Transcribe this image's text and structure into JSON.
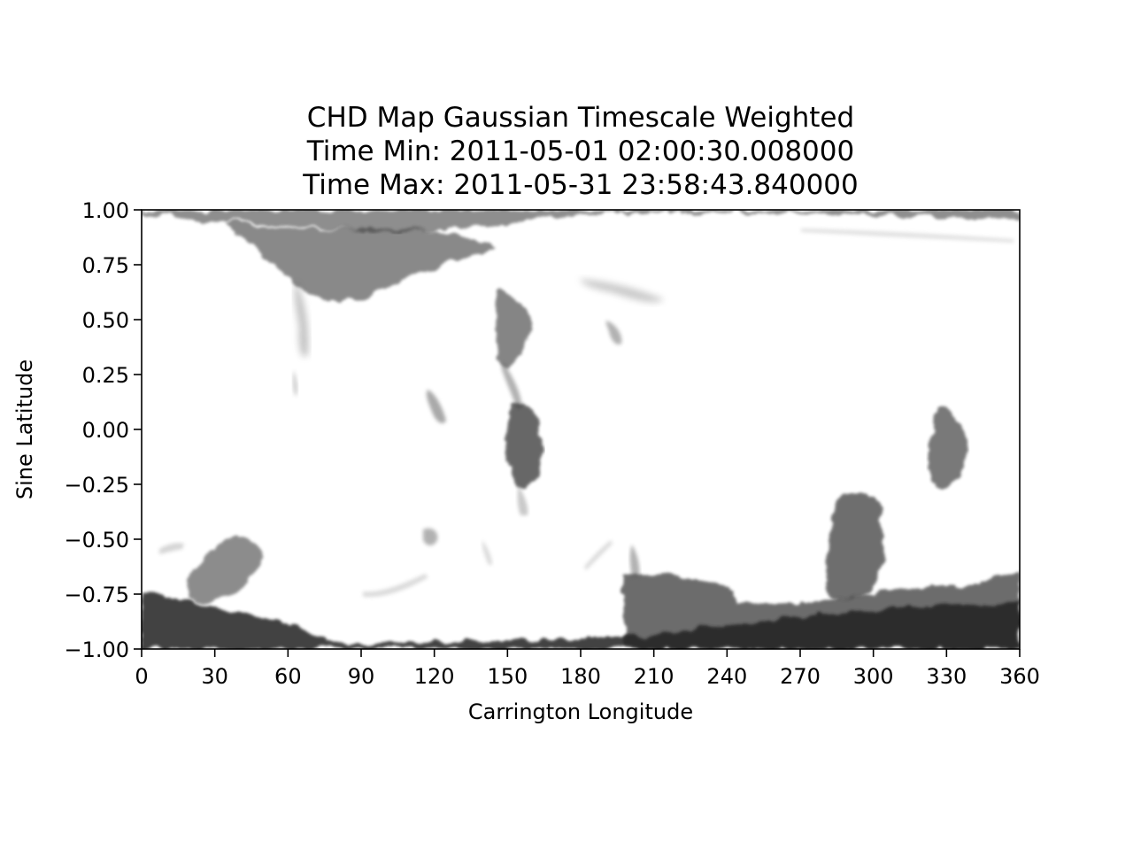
{
  "chart_data": {
    "type": "heatmap",
    "title_lines": [
      "CHD Map Gaussian Timescale Weighted",
      "Time Min: 2011-05-01 02:00:30.008000",
      "Time Max: 2011-05-31 23:58:43.840000"
    ],
    "xlabel": "Carrington Longitude",
    "ylabel": "Sine Latitude",
    "xlim": [
      0,
      360
    ],
    "ylim": [
      -1.0,
      1.0
    ],
    "xticks": [
      0,
      30,
      60,
      90,
      120,
      150,
      180,
      210,
      240,
      270,
      300,
      330,
      360
    ],
    "yticks": [
      -1.0,
      -0.75,
      -0.5,
      -0.25,
      0.0,
      0.25,
      0.5,
      0.75,
      1.0
    ],
    "xtick_labels": [
      "0",
      "30",
      "60",
      "90",
      "120",
      "150",
      "180",
      "210",
      "240",
      "270",
      "300",
      "330",
      "360"
    ],
    "ytick_labels": [
      "−1.00",
      "−0.75",
      "−0.50",
      "−0.25",
      "0.00",
      "0.25",
      "0.50",
      "0.75",
      "1.00"
    ],
    "colormap": "gray_r",
    "grid": false,
    "regions": [
      {
        "name": "north polar cap",
        "lon": [
          0,
          360
        ],
        "sinlat": [
          0.96,
          1.0
        ],
        "intensity": 0.55
      },
      {
        "name": "north high-lat extension",
        "lon": [
          45,
          95
        ],
        "sinlat": [
          0.62,
          0.88
        ],
        "intensity": 0.6
      },
      {
        "name": "north tendril",
        "lon": [
          70,
          78
        ],
        "sinlat": [
          0.3,
          0.6
        ],
        "intensity": 0.25
      },
      {
        "name": "mid-lat patch",
        "lon": [
          148,
          165
        ],
        "sinlat": [
          0.3,
          0.65
        ],
        "intensity": 0.6
      },
      {
        "name": "equatorial hole",
        "lon": [
          150,
          168
        ],
        "sinlat": [
          -0.4,
          0.1
        ],
        "intensity": 0.7
      },
      {
        "name": "small patch",
        "lon": [
          117,
          126
        ],
        "sinlat": [
          0.05,
          0.2
        ],
        "intensity": 0.5
      },
      {
        "name": "northern streak",
        "lon": [
          180,
          215
        ],
        "sinlat": [
          0.57,
          0.68
        ],
        "intensity": 0.3
      },
      {
        "name": "small patch",
        "lon": [
          188,
          200
        ],
        "sinlat": [
          0.3,
          0.48
        ],
        "intensity": 0.4
      },
      {
        "name": "faint streak",
        "lon": [
          270,
          360
        ],
        "sinlat": [
          0.85,
          0.92
        ],
        "intensity": 0.15
      },
      {
        "name": "eastern equatorial hole",
        "lon": [
          322,
          338
        ],
        "sinlat": [
          -0.3,
          0.1
        ],
        "intensity": 0.65
      },
      {
        "name": "south polar cap",
        "lon": [
          0,
          360
        ],
        "sinlat": [
          -1.0,
          -0.8
        ],
        "intensity": 0.85
      },
      {
        "name": "southern extension",
        "lon": [
          200,
          360
        ],
        "sinlat": [
          -0.85,
          -0.7
        ],
        "intensity": 0.7
      },
      {
        "name": "southern lobe",
        "lon": [
          280,
          305
        ],
        "sinlat": [
          -0.75,
          -0.28
        ],
        "intensity": 0.7
      },
      {
        "name": "southwest patch",
        "lon": [
          18,
          50
        ],
        "sinlat": [
          -0.78,
          -0.5
        ],
        "intensity": 0.6
      }
    ]
  }
}
